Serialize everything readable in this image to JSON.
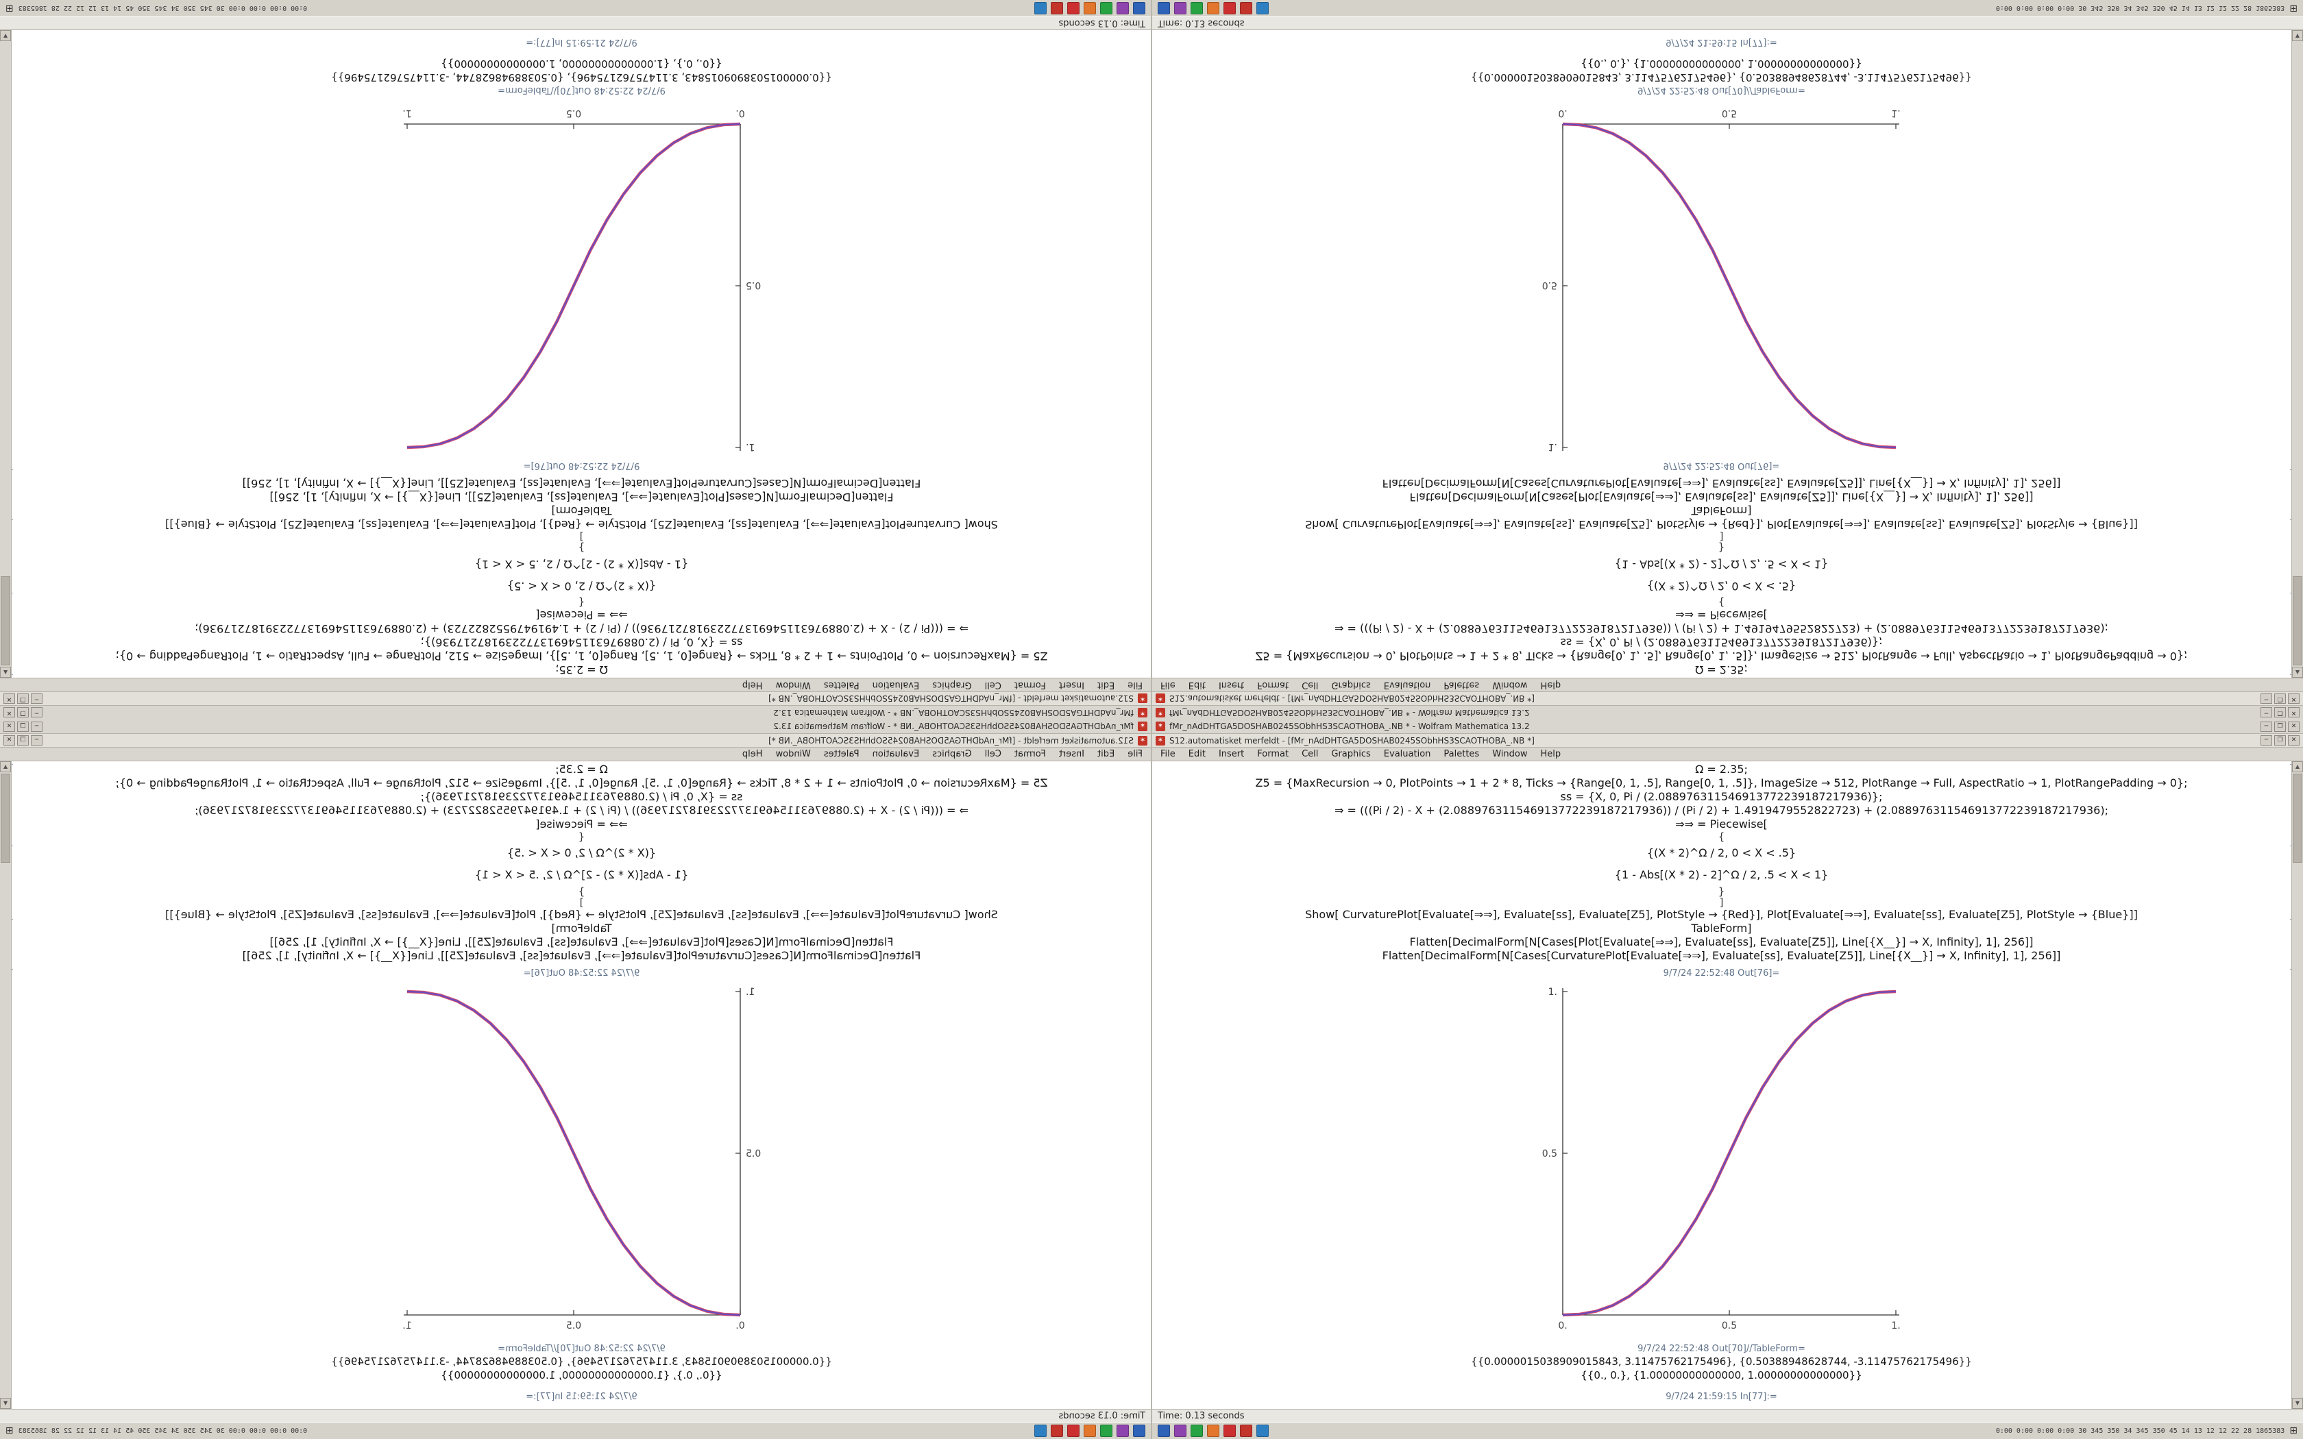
{
  "window": {
    "titlebar1": {
      "icon_glyph": "✶",
      "text": "fMr_nAdDHTGA5DOSHAB0245SObhHS3SCAOTHOBA_.NB * - Wolfram Mathematica 13.2"
    },
    "titlebar2": {
      "icon_glyph": "✶",
      "text": "S12.automatisket merfeldt - [fMr_nAdDHTGA5DOSHAB0245SObhHS3SCAOTHOBA_.NB *]"
    },
    "buttons": [
      "─",
      "❐",
      "✕"
    ],
    "menu": [
      "File",
      "Edit",
      "Insert",
      "Format",
      "Cell",
      "Graphics",
      "Evaluation",
      "Palettes",
      "Window",
      "Help"
    ],
    "status": "Time: 0.13 seconds"
  },
  "desktop": {
    "taskbar": {
      "tray_glyph": "⊞",
      "stats_text": "0:00 0:00 0:00 0:00  30 345 350 34 345 350 45 14 13 12 12 22 28  1865383",
      "icons": [
        {
          "name": "taskbar-app-icon-1",
          "color": "#2e63b8"
        },
        {
          "name": "taskbar-app-icon-2",
          "color": "#8e44ad"
        },
        {
          "name": "taskbar-app-icon-3",
          "color": "#27a344"
        },
        {
          "name": "taskbar-app-icon-4",
          "color": "#e2762d"
        },
        {
          "name": "taskbar-app-icon-5",
          "color": "#cc2f2f"
        },
        {
          "name": "taskbar-app-icon-6",
          "color": "#c3342b"
        },
        {
          "name": "taskbar-app-icon-7",
          "color": "#2d7fc1"
        }
      ]
    }
  },
  "cells": [
    {
      "type": "code",
      "text": "Ω = 2.35;"
    },
    {
      "type": "code",
      "text": "Z5 = {MaxRecursion → 0, PlotPoints → 1 + 2 * 8, Ticks → {Range[0, 1, .5], Range[0, 1, .5]}, ImageSize → 512, PlotRange → Full, AspectRatio → 1, PlotRangePadding → 0};"
    },
    {
      "type": "code",
      "text": "ss = {X, 0, Pi / (2.088976311546913772239187217936)};"
    },
    {
      "type": "code",
      "text": "⇒ = (((Pi / 2) - X + (2.088976311546913772239187217936)) / (Pi / 2) + 1.4919479552822723) + (2.088976311546913772239187217936);"
    },
    {
      "type": "code",
      "text": "⇒⇒ = Piecewise["
    },
    {
      "type": "brace",
      "text": "{"
    },
    {
      "type": "piece",
      "text": "{(X * 2)^Ω / 2, 0 < X < .5}"
    },
    {
      "type": "piece",
      "text": "{1 - Abs[(X * 2) - 2]^Ω / 2, .5 < X < 1}"
    },
    {
      "type": "brace",
      "text": "}"
    },
    {
      "type": "brace",
      "text": "]"
    },
    {
      "type": "code",
      "text": "Show[  CurvaturePlot[Evaluate[⇒⇒], Evaluate[ss], Evaluate[Z5], PlotStyle → {Red}],  Plot[Evaluate[⇒⇒], Evaluate[ss], Evaluate[Z5], PlotStyle → {Blue}]]"
    },
    {
      "type": "code",
      "text": "TableForm]"
    },
    {
      "type": "code",
      "text": "Flatten[DecimalForm[N[Cases[Plot[Evaluate[⇒⇒], Evaluate[ss], Evaluate[Z5]], Line[{X__}] → X, Infinity], 1], 256]]"
    },
    {
      "type": "code",
      "text": "Flatten[DecimalForm[N[Cases[CurvaturePlot[Evaluate[⇒⇒], Evaluate[ss], Evaluate[Z5]], Line[{X__}] → X, Infinity], 1], 256]]"
    },
    {
      "type": "outlabel",
      "text": "9/7/24 22:52:48 Out[76]="
    },
    {
      "type": "plot"
    },
    {
      "type": "outlabel",
      "text": "9/7/24 22:52:48 Out[70]//TableForm="
    },
    {
      "type": "result",
      "text": "{{0.0000015038909015843, 3.11475762175496}, {0.50388948628744, -3.11475762175496}}"
    },
    {
      "type": "result",
      "text": "{{0., 0.}, {1.00000000000000, 1.00000000000000}}"
    },
    {
      "type": "inlabel",
      "text": "9/7/24 21:59:15 In[77]:="
    }
  ],
  "chart_data": {
    "type": "line",
    "title": "",
    "xlabel": "",
    "ylabel": "",
    "xlim": [
      0,
      1
    ],
    "ylim": [
      0,
      1
    ],
    "grid": false,
    "legend": "none",
    "x": [
      0,
      0.05,
      0.1,
      0.15,
      0.2,
      0.25,
      0.3,
      0.35,
      0.4,
      0.45,
      0.5,
      0.55,
      0.6,
      0.65,
      0.7,
      0.75,
      0.8,
      0.85,
      0.9,
      0.95,
      1
    ],
    "series": [
      {
        "name": "CurvaturePlot (Red)",
        "color": "#cf3a5e",
        "values": [
          0,
          0.0022,
          0.0114,
          0.0295,
          0.058,
          0.0981,
          0.1506,
          0.2163,
          0.296,
          0.3904,
          0.5,
          0.6096,
          0.704,
          0.7837,
          0.8494,
          0.9019,
          0.942,
          0.9705,
          0.9886,
          0.9978,
          1
        ]
      },
      {
        "name": "Plot (Blue)",
        "color": "#5a4cc8",
        "values": [
          0,
          0.0022,
          0.0114,
          0.0295,
          0.058,
          0.0981,
          0.1506,
          0.2163,
          0.296,
          0.3904,
          0.5,
          0.6096,
          0.704,
          0.7837,
          0.8494,
          0.9019,
          0.942,
          0.9705,
          0.9886,
          0.9978,
          1
        ]
      }
    ],
    "xticks": [
      {
        "v": 0,
        "label": "0."
      },
      {
        "v": 0.5,
        "label": "0.5"
      },
      {
        "v": 1,
        "label": "1."
      }
    ],
    "yticks": [
      {
        "v": 0.5,
        "label": "0.5"
      },
      {
        "v": 1,
        "label": "1."
      }
    ]
  }
}
